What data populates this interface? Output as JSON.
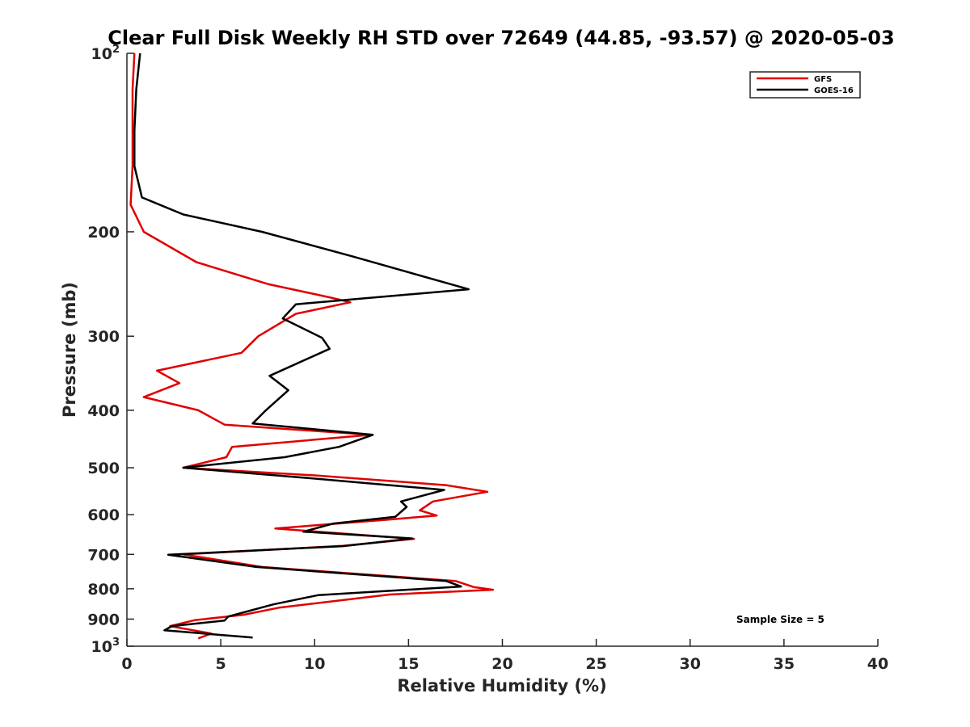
{
  "chart_data": {
    "type": "line",
    "title": "Clear Full Disk Weekly RH STD over 72649 (44.85, -93.57) @ 2020-05-03",
    "xlabel": "Relative Humidity (%)",
    "ylabel": "Pressure (mb)",
    "xlim": [
      0,
      40
    ],
    "ylim": [
      100,
      1000
    ],
    "y_scale": "log",
    "y_reversed": true,
    "x_ticks": [
      0,
      5,
      10,
      15,
      20,
      25,
      30,
      35,
      40
    ],
    "y_ticks": [
      {
        "value": 100,
        "base": "10",
        "exp": "2"
      },
      {
        "value": 200,
        "label": "200"
      },
      {
        "value": 300,
        "label": "300"
      },
      {
        "value": 400,
        "label": "400"
      },
      {
        "value": 500,
        "label": "500"
      },
      {
        "value": 600,
        "label": "600"
      },
      {
        "value": 700,
        "label": "700"
      },
      {
        "value": 800,
        "label": "800"
      },
      {
        "value": 900,
        "label": "900"
      },
      {
        "value": 1000,
        "base": "10",
        "exp": "3"
      }
    ],
    "grid": false,
    "legend_position": "top-right",
    "series": [
      {
        "name": "GFS",
        "color": "#e00000",
        "points": [
          [
            0.4,
            100
          ],
          [
            0.3,
            115
          ],
          [
            0.3,
            135
          ],
          [
            0.3,
            155
          ],
          [
            0.2,
            180
          ],
          [
            0.9,
            200
          ],
          [
            3.7,
            225
          ],
          [
            7.5,
            245
          ],
          [
            10.8,
            258
          ],
          [
            11.9,
            263
          ],
          [
            9.0,
            275
          ],
          [
            7.0,
            300
          ],
          [
            6.1,
            320
          ],
          [
            1.6,
            343
          ],
          [
            2.8,
            360
          ],
          [
            0.9,
            380
          ],
          [
            3.8,
            400
          ],
          [
            5.2,
            423
          ],
          [
            13.0,
            440
          ],
          [
            5.6,
            461
          ],
          [
            5.3,
            480
          ],
          [
            3.0,
            500
          ],
          [
            10.0,
            515
          ],
          [
            17.0,
            535
          ],
          [
            19.2,
            549
          ],
          [
            16.3,
            570
          ],
          [
            15.6,
            590
          ],
          [
            16.5,
            602
          ],
          [
            13.8,
            612
          ],
          [
            7.9,
            633
          ],
          [
            15.3,
            659
          ],
          [
            11.5,
            677
          ],
          [
            3.0,
            700
          ],
          [
            7.2,
            735
          ],
          [
            17.5,
            776
          ],
          [
            18.5,
            795
          ],
          [
            19.5,
            803
          ],
          [
            14.0,
            818
          ],
          [
            8.1,
            861
          ],
          [
            6.2,
            885
          ],
          [
            3.6,
            904
          ],
          [
            2.3,
            925
          ],
          [
            4.5,
            952
          ],
          [
            3.8,
            970
          ]
        ]
      },
      {
        "name": "GOES-16",
        "color": "#000000",
        "points": [
          [
            0.7,
            100
          ],
          [
            0.5,
            115
          ],
          [
            0.4,
            135
          ],
          [
            0.4,
            155
          ],
          [
            0.8,
            175
          ],
          [
            3.0,
            187
          ],
          [
            7.2,
            200
          ],
          [
            12.0,
            220
          ],
          [
            18.2,
            250
          ],
          [
            9.0,
            265
          ],
          [
            8.3,
            280
          ],
          [
            10.4,
            302
          ],
          [
            10.8,
            315
          ],
          [
            7.6,
            350
          ],
          [
            8.6,
            370
          ],
          [
            7.4,
            400
          ],
          [
            6.7,
            421
          ],
          [
            13.1,
            440
          ],
          [
            11.3,
            461
          ],
          [
            8.4,
            480
          ],
          [
            3.0,
            500
          ],
          [
            9.5,
            520
          ],
          [
            16.9,
            545
          ],
          [
            14.6,
            570
          ],
          [
            14.9,
            582
          ],
          [
            14.3,
            605
          ],
          [
            11.0,
            621
          ],
          [
            9.4,
            641
          ],
          [
            15.2,
            658
          ],
          [
            11.5,
            678
          ],
          [
            2.2,
            701
          ],
          [
            6.9,
            735
          ],
          [
            17.0,
            776
          ],
          [
            17.8,
            793
          ],
          [
            10.2,
            820
          ],
          [
            7.8,
            850
          ],
          [
            5.4,
            891
          ],
          [
            5.2,
            905
          ],
          [
            2.4,
            925
          ],
          [
            2.0,
            940
          ],
          [
            6.7,
            967
          ]
        ]
      }
    ],
    "annotations": [
      "Sample Size = 5"
    ]
  }
}
